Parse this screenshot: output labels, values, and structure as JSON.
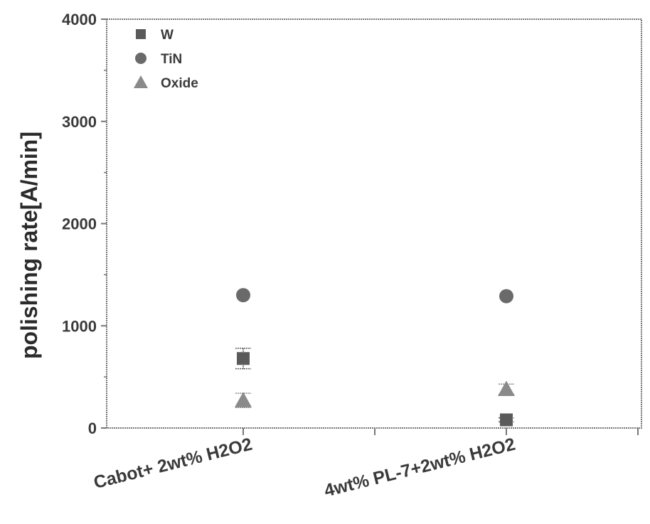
{
  "chart_data": {
    "type": "scatter",
    "title": "",
    "xlabel": "",
    "ylabel": "polishing rate[A/min]",
    "ylim": [
      0,
      4000
    ],
    "yticks": [
      "0",
      "1000",
      "2000",
      "3000",
      "4000"
    ],
    "categories": [
      "Cabot+ 2wt% H2O2",
      "4wt% PL-7+2wt% H2O2"
    ],
    "legend_position": "top-left",
    "series": [
      {
        "name": "W",
        "marker": "square",
        "color": "#5a5a5a",
        "values": [
          680,
          80
        ],
        "errors": [
          100,
          20
        ]
      },
      {
        "name": "TiN",
        "marker": "circle",
        "color": "#6a6a6a",
        "values": [
          1300,
          1290
        ],
        "errors": [
          0,
          0
        ]
      },
      {
        "name": "Oxide",
        "marker": "triangle",
        "color": "#8a8a8a",
        "values": [
          270,
          380
        ],
        "errors": [
          70,
          50
        ]
      }
    ]
  }
}
